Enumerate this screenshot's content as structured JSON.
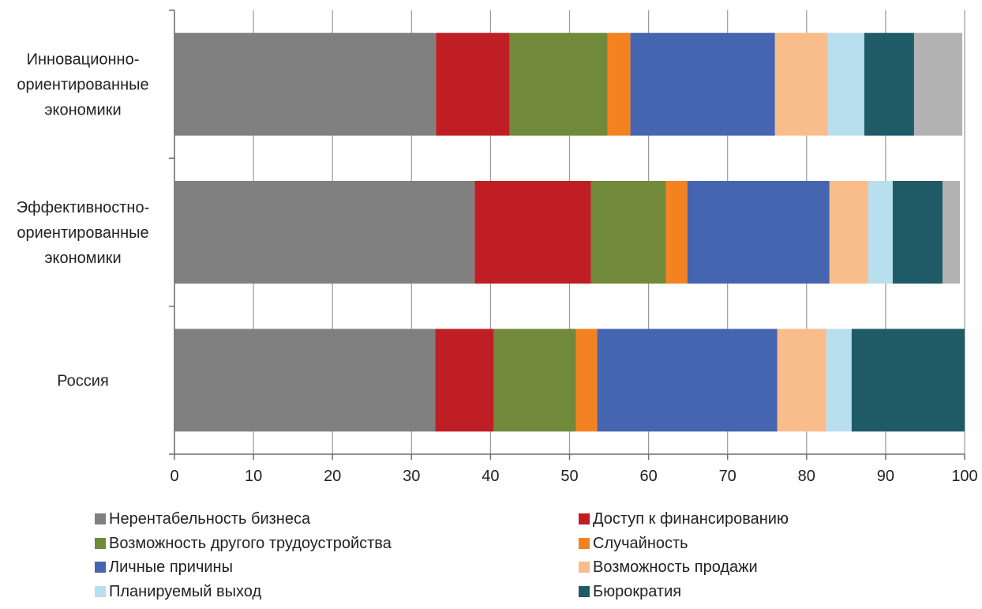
{
  "chart_data": {
    "type": "bar",
    "orientation": "horizontal",
    "stacked": true,
    "title": "",
    "xlabel": "",
    "ylabel": "",
    "xlim": [
      0,
      100
    ],
    "x_ticks": [
      "0",
      "10",
      "20",
      "30",
      "40",
      "50",
      "60",
      "70",
      "80",
      "90",
      "100"
    ],
    "grid": true,
    "legend_position": "bottom",
    "categories": [
      {
        "lines": [
          "Инновационно-",
          "ориентированные",
          "экономики"
        ]
      },
      {
        "lines": [
          "Эффективностно-",
          "ориентированные",
          "экономики"
        ]
      },
      {
        "lines": [
          "Россия"
        ]
      }
    ],
    "series": [
      {
        "name": "Нерентабельность бизнеса",
        "color": "#808080",
        "values": [
          33.1,
          38.0,
          33.0
        ]
      },
      {
        "name": "Доступ к финансированию",
        "color": "#be1e24",
        "values": [
          9.3,
          14.7,
          7.4
        ]
      },
      {
        "name": "Возможность другого трудоустройства",
        "color": "#71893a",
        "values": [
          12.4,
          9.5,
          10.4
        ]
      },
      {
        "name": "Случайность",
        "color": "#f58220",
        "values": [
          2.9,
          2.7,
          2.7
        ]
      },
      {
        "name": "Личные причины",
        "color": "#4565b0",
        "values": [
          18.3,
          18.0,
          22.8
        ]
      },
      {
        "name": "Возможность продажи",
        "color": "#f9bd8c",
        "values": [
          6.7,
          4.9,
          6.2
        ]
      },
      {
        "name": "Планируемый выход",
        "color": "#b8dfee",
        "values": [
          4.6,
          3.1,
          3.2
        ]
      },
      {
        "name": "Бюрократия",
        "color": "#1f5a67",
        "values": [
          6.3,
          6.3,
          14.3
        ]
      },
      {
        "name": "",
        "color": "#b3b3b3",
        "values": [
          6.1,
          2.2,
          0
        ]
      }
    ]
  }
}
